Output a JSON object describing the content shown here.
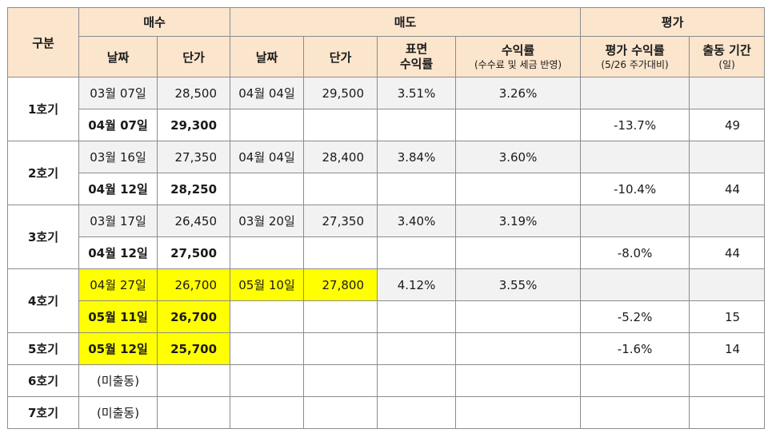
{
  "header": {
    "group": "구분",
    "buy": "매수",
    "sell": "매도",
    "eval": "평가",
    "buy_date": "날짜",
    "buy_price": "단가",
    "sell_date": "날짜",
    "sell_price": "단가",
    "surface_yield_1": "표면",
    "surface_yield_2": "수익률",
    "yield": "수익률",
    "yield_note": "(수수료 및 세금 반영)",
    "eval_yield": "평가 수익률",
    "eval_yield_note": "(5/26 주가대비)",
    "period": "출동 기간",
    "period_note": "(일)"
  },
  "rows": [
    {
      "label": "1호기",
      "first": {
        "buy_date": "03월 07일",
        "buy_price": "28,500",
        "sell_date": "04월 04일",
        "sell_price": "29,500",
        "surface_yield": "3.51%",
        "yield": "3.26%"
      },
      "second": {
        "buy_date": "04월 07일",
        "buy_price": "29,300",
        "eval_yield": "-13.7%",
        "days": "49"
      }
    },
    {
      "label": "2호기",
      "first": {
        "buy_date": "03월 16일",
        "buy_price": "27,350",
        "sell_date": "04월 04일",
        "sell_price": "28,400",
        "surface_yield": "3.84%",
        "yield": "3.60%"
      },
      "second": {
        "buy_date": "04월 12일",
        "buy_price": "28,250",
        "eval_yield": "-10.4%",
        "days": "44"
      }
    },
    {
      "label": "3호기",
      "first": {
        "buy_date": "03월 17일",
        "buy_price": "26,450",
        "sell_date": "03월 20일",
        "sell_price": "27,350",
        "surface_yield": "3.40%",
        "yield": "3.19%"
      },
      "second": {
        "buy_date": "04월 12일",
        "buy_price": "27,500",
        "eval_yield": "-8.0%",
        "days": "44"
      }
    },
    {
      "label": "4호기",
      "first": {
        "buy_date": "04월 27일",
        "buy_price": "26,700",
        "sell_date": "05월 10일",
        "sell_price": "27,800",
        "surface_yield": "4.12%",
        "yield": "3.55%"
      },
      "second": {
        "buy_date": "05월 11일",
        "buy_price": "26,700",
        "eval_yield": "-5.2%",
        "days": "15"
      }
    },
    {
      "label": "5호기",
      "single": {
        "buy_date": "05월 12일",
        "buy_price": "25,700",
        "eval_yield": "-1.6%",
        "days": "14"
      }
    },
    {
      "label": "6호기",
      "note": "(미출동)"
    },
    {
      "label": "7호기",
      "note": "(미출동)"
    }
  ],
  "colors": {
    "header_bg": "#fbe5cd",
    "shade_bg": "#f2f2f2",
    "highlight": "#ffff00",
    "border": "#8c8c8c"
  }
}
